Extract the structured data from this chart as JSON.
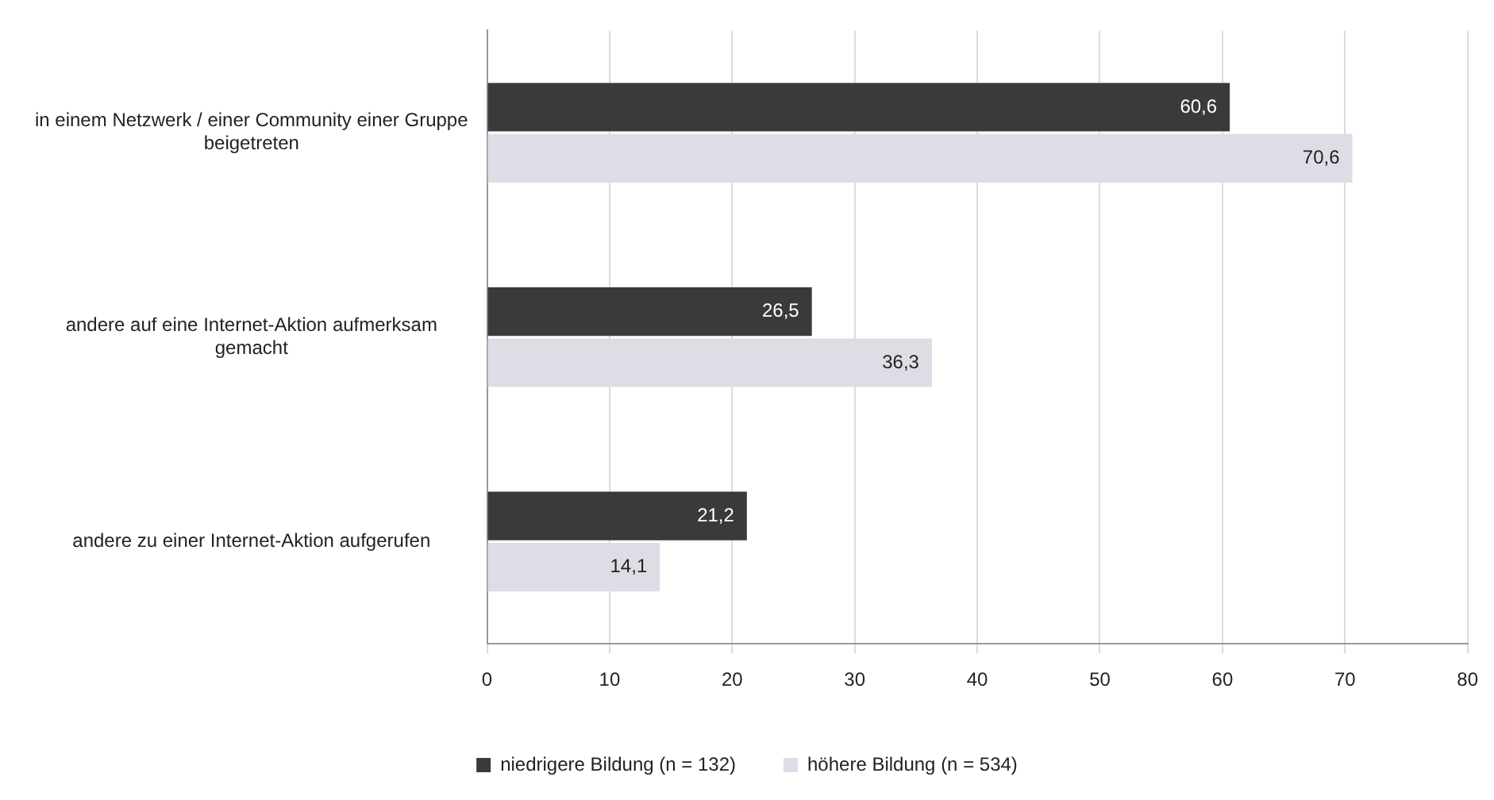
{
  "chart_data": {
    "type": "bar",
    "orientation": "horizontal",
    "categories": [
      "in einem Netzwerk / einer Community einer Gruppe beigetreten",
      "andere auf eine Internet-Aktion aufmerksam gemacht",
      "andere zu einer Internet-Aktion aufgerufen"
    ],
    "series": [
      {
        "name": "niedrigere Bildung (n = 132)",
        "color": "#3a3a3a",
        "values": [
          60.6,
          26.5,
          21.2
        ],
        "value_labels": [
          "60,6",
          "26,5",
          "21,2"
        ]
      },
      {
        "name": "höhere Bildung (n = 534)",
        "color": "#dddde6",
        "values": [
          70.6,
          36.3,
          14.1
        ],
        "value_labels": [
          "70,6",
          "36,3",
          "14,1"
        ]
      }
    ],
    "xlim": [
      0,
      80
    ],
    "xticks": [
      0,
      10,
      20,
      30,
      40,
      50,
      60,
      70,
      80
    ],
    "grid": "x",
    "legend": "bottom"
  }
}
